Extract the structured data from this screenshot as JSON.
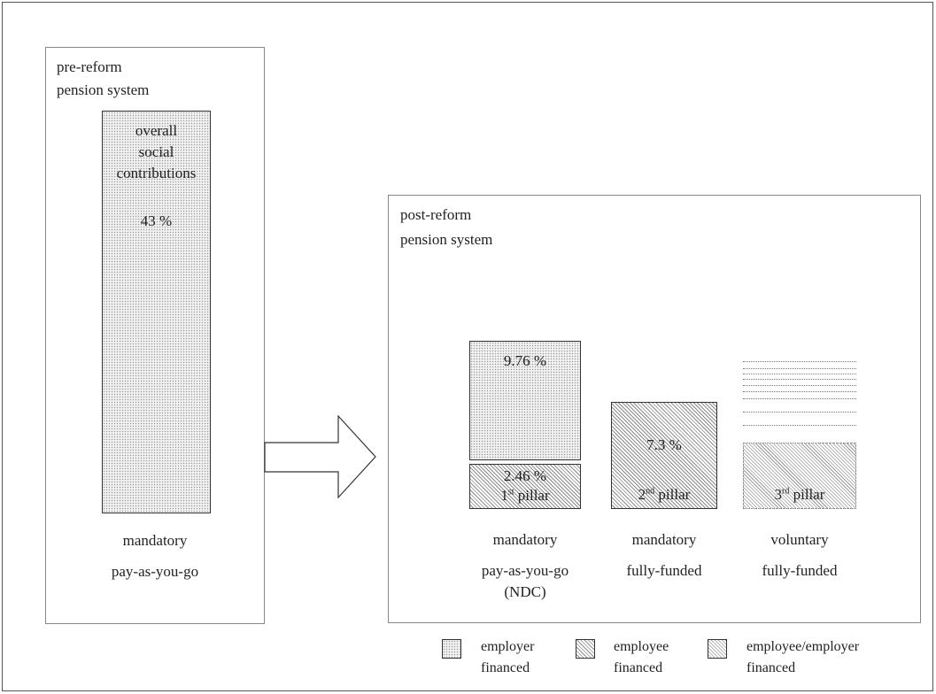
{
  "pre_reform": {
    "title_line1": "pre-reform",
    "title_line2": "pension system",
    "bar": {
      "line1": "overall",
      "line2": "social",
      "line3": "contributions",
      "value": "43 %"
    },
    "type_line1": "mandatory",
    "type_line2": "pay-as-you-go"
  },
  "post_reform": {
    "title_line1": "post-reform",
    "title_line2": "pension system",
    "pillar1": {
      "employer_value": "9.76 %",
      "employee_value": "2.46 %",
      "label_num": "1",
      "label_sup": "st",
      "label_word": " pillar",
      "type_line1": "mandatory",
      "type_line2": "pay-as-you-go",
      "type_line3": "(NDC)"
    },
    "pillar2": {
      "value": "7.3 %",
      "label_num": "2",
      "label_sup": "nd",
      "label_word": " pillar",
      "type_line1": "mandatory",
      "type_line2": "fully-funded"
    },
    "pillar3": {
      "label_num": "3",
      "label_sup": "rd",
      "label_word": " pillar",
      "type_line1": "voluntary",
      "type_line2": "fully-funded"
    }
  },
  "legend": {
    "employer_line1": "employer",
    "employer_line2": "financed",
    "employee_line1": "employee",
    "employee_line2": "financed",
    "mixed_line1": "employee/employer",
    "mixed_line2": "financed"
  },
  "colors": {
    "border": "#333333",
    "dots": "#9a9a9a",
    "hatch": "#8c8c8c"
  }
}
